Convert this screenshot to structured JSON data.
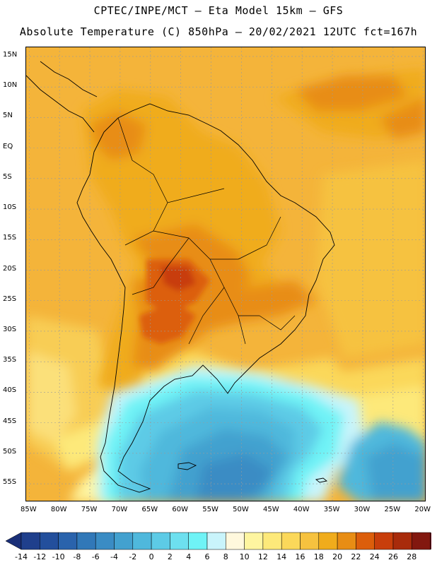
{
  "title": {
    "line1": "CPTEC/INPE/MCT –  Eta Model 15km – GFS",
    "line2": "Absolute Temperature (C) 850hPa – 20/02/2021 12UTC fct=167h"
  },
  "axes": {
    "lat_ticks": [
      {
        "label": "15N",
        "value": 15
      },
      {
        "label": "10N",
        "value": 10
      },
      {
        "label": "5N",
        "value": 5
      },
      {
        "label": "EQ",
        "value": 0
      },
      {
        "label": "5S",
        "value": -5
      },
      {
        "label": "10S",
        "value": -10
      },
      {
        "label": "15S",
        "value": -15
      },
      {
        "label": "20S",
        "value": -20
      },
      {
        "label": "25S",
        "value": -25
      },
      {
        "label": "30S",
        "value": -30
      },
      {
        "label": "35S",
        "value": -35
      },
      {
        "label": "40S",
        "value": -40
      },
      {
        "label": "45S",
        "value": -45
      },
      {
        "label": "50S",
        "value": -50
      },
      {
        "label": "55S",
        "value": -55
      }
    ],
    "lon_ticks": [
      {
        "label": "85W",
        "value": -85
      },
      {
        "label": "80W",
        "value": -80
      },
      {
        "label": "75W",
        "value": -75
      },
      {
        "label": "70W",
        "value": -70
      },
      {
        "label": "65W",
        "value": -65
      },
      {
        "label": "60W",
        "value": -60
      },
      {
        "label": "55W",
        "value": -55
      },
      {
        "label": "50W",
        "value": -50
      },
      {
        "label": "45W",
        "value": -45
      },
      {
        "label": "40W",
        "value": -40
      },
      {
        "label": "35W",
        "value": -35
      },
      {
        "label": "30W",
        "value": -30
      },
      {
        "label": "25W",
        "value": -25
      },
      {
        "label": "20W",
        "value": -20
      }
    ],
    "lat_range": [
      -58,
      16.5
    ],
    "lon_range": [
      -85.5,
      -19.5
    ],
    "grid": true
  },
  "colorbar": {
    "labels": [
      "-14",
      "-12",
      "-10",
      "-8",
      "-6",
      "-4",
      "-2",
      "0",
      "2",
      "4",
      "6",
      "8",
      "10",
      "12",
      "14",
      "16",
      "18",
      "20",
      "22",
      "24",
      "26",
      "28"
    ],
    "colors": [
      "#1f3f8c",
      "#234f9c",
      "#2a63ac",
      "#3178b8",
      "#3a8cc4",
      "#43a1cf",
      "#4fb8dc",
      "#5dcbe6",
      "#6de0ef",
      "#6ff3f6",
      "#c9f4fb",
      "#fff8dd",
      "#fef5a0",
      "#fde97a",
      "#fbd85a",
      "#f6c23f",
      "#f0ac1c",
      "#e88d14",
      "#dc5e0b",
      "#c83e0b",
      "#a82b0b",
      "#82180f"
    ],
    "low_end_color": "#1a2f78",
    "high_end_color": "#6a0c1c"
  },
  "colors": {
    "coastline": "#000000",
    "grid": "#9a9a9a"
  }
}
